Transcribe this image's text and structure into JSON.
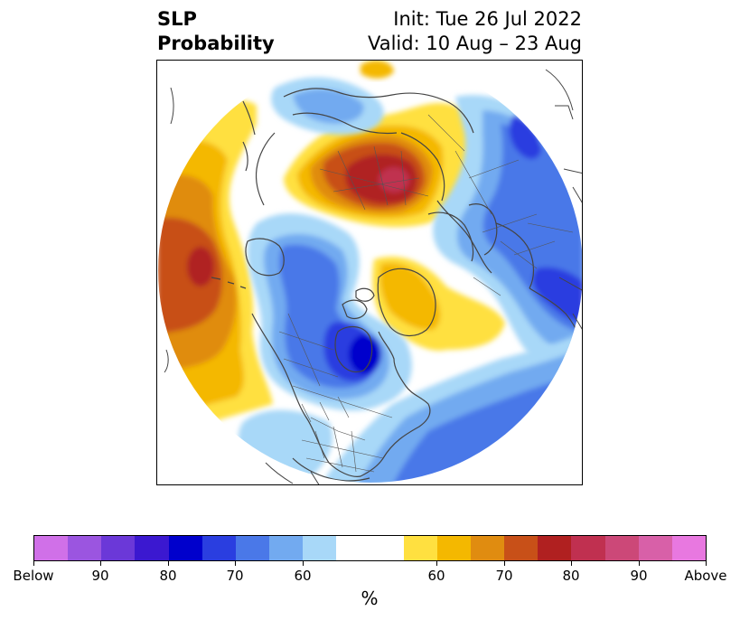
{
  "title": {
    "left_line1": "SLP",
    "left_line2": "Probability",
    "init": "Init: Tue 26 Jul 2022",
    "valid": "Valid: 10 Aug – 23 Aug"
  },
  "map": {
    "projection": "north-polar-stereographic",
    "region": "Northern Hemisphere",
    "background": "#ffffff",
    "coastline_color": "#444444"
  },
  "colorbar": {
    "unit": "%",
    "below_colors": [
      "#d070e8",
      "#9b55e0",
      "#6b38d8",
      "#3b18d0",
      "#0000cc",
      "#2a3ee0",
      "#4a78e8",
      "#72aaf0",
      "#a8d8f8"
    ],
    "neutral_color": "#ffffff",
    "above_colors": [
      "#ffe040",
      "#f4b800",
      "#e08c10",
      "#c85018",
      "#b02020",
      "#c03050",
      "#cc4878",
      "#d860a8",
      "#e878e0"
    ],
    "tick_labels": [
      "Below",
      "90",
      "80",
      "70",
      "60",
      "60",
      "70",
      "80",
      "90",
      "Above"
    ]
  }
}
